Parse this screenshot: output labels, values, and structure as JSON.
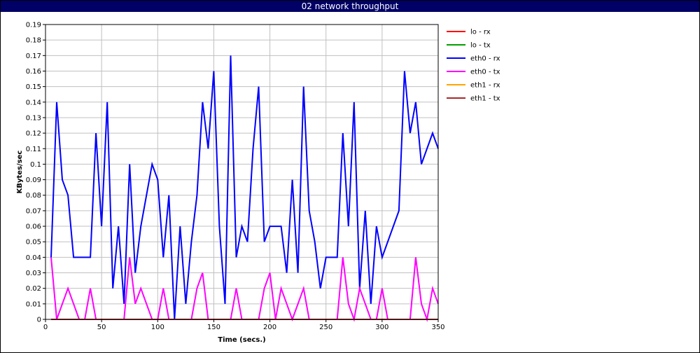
{
  "window": {
    "title": "02 network throughput"
  },
  "colors": {
    "title_bar": "#000066",
    "grid": "#c0c0c0",
    "axis": "#000000"
  },
  "chart_data": {
    "type": "line",
    "title": "02 network throughput",
    "xlabel": "Time (secs.)",
    "ylabel": "KBytes/sec",
    "xlim": [
      0,
      350
    ],
    "ylim": [
      0,
      0.19
    ],
    "xticks": [
      "0",
      "50",
      "100",
      "150",
      "200",
      "250",
      "300",
      "350"
    ],
    "yticks": [
      "0",
      "0.01",
      "0.02",
      "0.03",
      "0.04",
      "0.05",
      "0.06",
      "0.07",
      "0.08",
      "0.09",
      "0.1",
      "0.11",
      "0.12",
      "0.13",
      "0.14",
      "0.15",
      "0.16",
      "0.17",
      "0.18",
      "0.19"
    ],
    "grid": true,
    "legend_position": "right",
    "series": [
      {
        "name": "lo - rx",
        "color": "#ff0000",
        "points": [
          [
            5,
            0
          ],
          [
            350,
            0
          ]
        ]
      },
      {
        "name": "lo - tx",
        "color": "#00a000",
        "points": [
          [
            5,
            0
          ],
          [
            350,
            0
          ]
        ]
      },
      {
        "name": "eth0 - rx",
        "color": "#0000ff",
        "points": [
          [
            5,
            0.04
          ],
          [
            10,
            0.14
          ],
          [
            15,
            0.09
          ],
          [
            20,
            0.08
          ],
          [
            25,
            0.04
          ],
          [
            30,
            0.04
          ],
          [
            35,
            0.04
          ],
          [
            40,
            0.04
          ],
          [
            45,
            0.12
          ],
          [
            50,
            0.06
          ],
          [
            55,
            0.14
          ],
          [
            60,
            0.02
          ],
          [
            65,
            0.06
          ],
          [
            70,
            0.01
          ],
          [
            75,
            0.1
          ],
          [
            80,
            0.03
          ],
          [
            85,
            0.06
          ],
          [
            95,
            0.1
          ],
          [
            100,
            0.09
          ],
          [
            105,
            0.04
          ],
          [
            110,
            0.08
          ],
          [
            115,
            0
          ],
          [
            120,
            0.06
          ],
          [
            125,
            0.01
          ],
          [
            130,
            0.05
          ],
          [
            135,
            0.08
          ],
          [
            140,
            0.14
          ],
          [
            145,
            0.11
          ],
          [
            150,
            0.16
          ],
          [
            155,
            0.06
          ],
          [
            160,
            0.01
          ],
          [
            165,
            0.17
          ],
          [
            170,
            0.04
          ],
          [
            175,
            0.06
          ],
          [
            180,
            0.05
          ],
          [
            185,
            0.11
          ],
          [
            190,
            0.15
          ],
          [
            195,
            0.05
          ],
          [
            200,
            0.06
          ],
          [
            205,
            0.06
          ],
          [
            210,
            0.06
          ],
          [
            215,
            0.03
          ],
          [
            220,
            0.09
          ],
          [
            225,
            0.03
          ],
          [
            230,
            0.15
          ],
          [
            235,
            0.07
          ],
          [
            240,
            0.05
          ],
          [
            245,
            0.02
          ],
          [
            250,
            0.04
          ],
          [
            255,
            0.04
          ],
          [
            260,
            0.04
          ],
          [
            265,
            0.12
          ],
          [
            270,
            0.06
          ],
          [
            275,
            0.14
          ],
          [
            280,
            0.02
          ],
          [
            285,
            0.07
          ],
          [
            290,
            0.01
          ],
          [
            295,
            0.06
          ],
          [
            300,
            0.04
          ],
          [
            315,
            0.07
          ],
          [
            320,
            0.16
          ],
          [
            325,
            0.12
          ],
          [
            330,
            0.14
          ],
          [
            335,
            0.1
          ],
          [
            345,
            0.12
          ],
          [
            350,
            0.11
          ]
        ]
      },
      {
        "name": "eth0 - tx",
        "color": "#ff00ff",
        "points": [
          [
            5,
            0.04
          ],
          [
            10,
            0
          ],
          [
            20,
            0.02
          ],
          [
            30,
            0
          ],
          [
            35,
            0
          ],
          [
            40,
            0.02
          ],
          [
            45,
            0
          ],
          [
            70,
            0
          ],
          [
            75,
            0.04
          ],
          [
            80,
            0.01
          ],
          [
            85,
            0.02
          ],
          [
            95,
            0
          ],
          [
            100,
            0
          ],
          [
            105,
            0.02
          ],
          [
            110,
            0
          ],
          [
            130,
            0
          ],
          [
            135,
            0.02
          ],
          [
            140,
            0.03
          ],
          [
            145,
            0
          ],
          [
            155,
            0
          ],
          [
            160,
            0
          ],
          [
            165,
            0
          ],
          [
            170,
            0.02
          ],
          [
            175,
            0
          ],
          [
            190,
            0
          ],
          [
            195,
            0.02
          ],
          [
            200,
            0.03
          ],
          [
            205,
            0
          ],
          [
            210,
            0.02
          ],
          [
            215,
            0.01
          ],
          [
            220,
            0
          ],
          [
            230,
            0.02
          ],
          [
            235,
            0
          ],
          [
            255,
            0
          ],
          [
            260,
            0
          ],
          [
            265,
            0.04
          ],
          [
            270,
            0.01
          ],
          [
            275,
            0
          ],
          [
            280,
            0.02
          ],
          [
            285,
            0.01
          ],
          [
            290,
            0
          ],
          [
            295,
            0
          ],
          [
            300,
            0.02
          ],
          [
            305,
            0
          ],
          [
            325,
            0
          ],
          [
            330,
            0.04
          ],
          [
            335,
            0.01
          ],
          [
            340,
            0
          ],
          [
            345,
            0.02
          ],
          [
            350,
            0.01
          ]
        ]
      },
      {
        "name": "eth1 - rx",
        "color": "#ffa500",
        "points": [
          [
            5,
            0
          ],
          [
            350,
            0
          ]
        ]
      },
      {
        "name": "eth1 - tx",
        "color": "#a52a2a",
        "points": [
          [
            5,
            0
          ],
          [
            350,
            0
          ]
        ]
      }
    ]
  }
}
